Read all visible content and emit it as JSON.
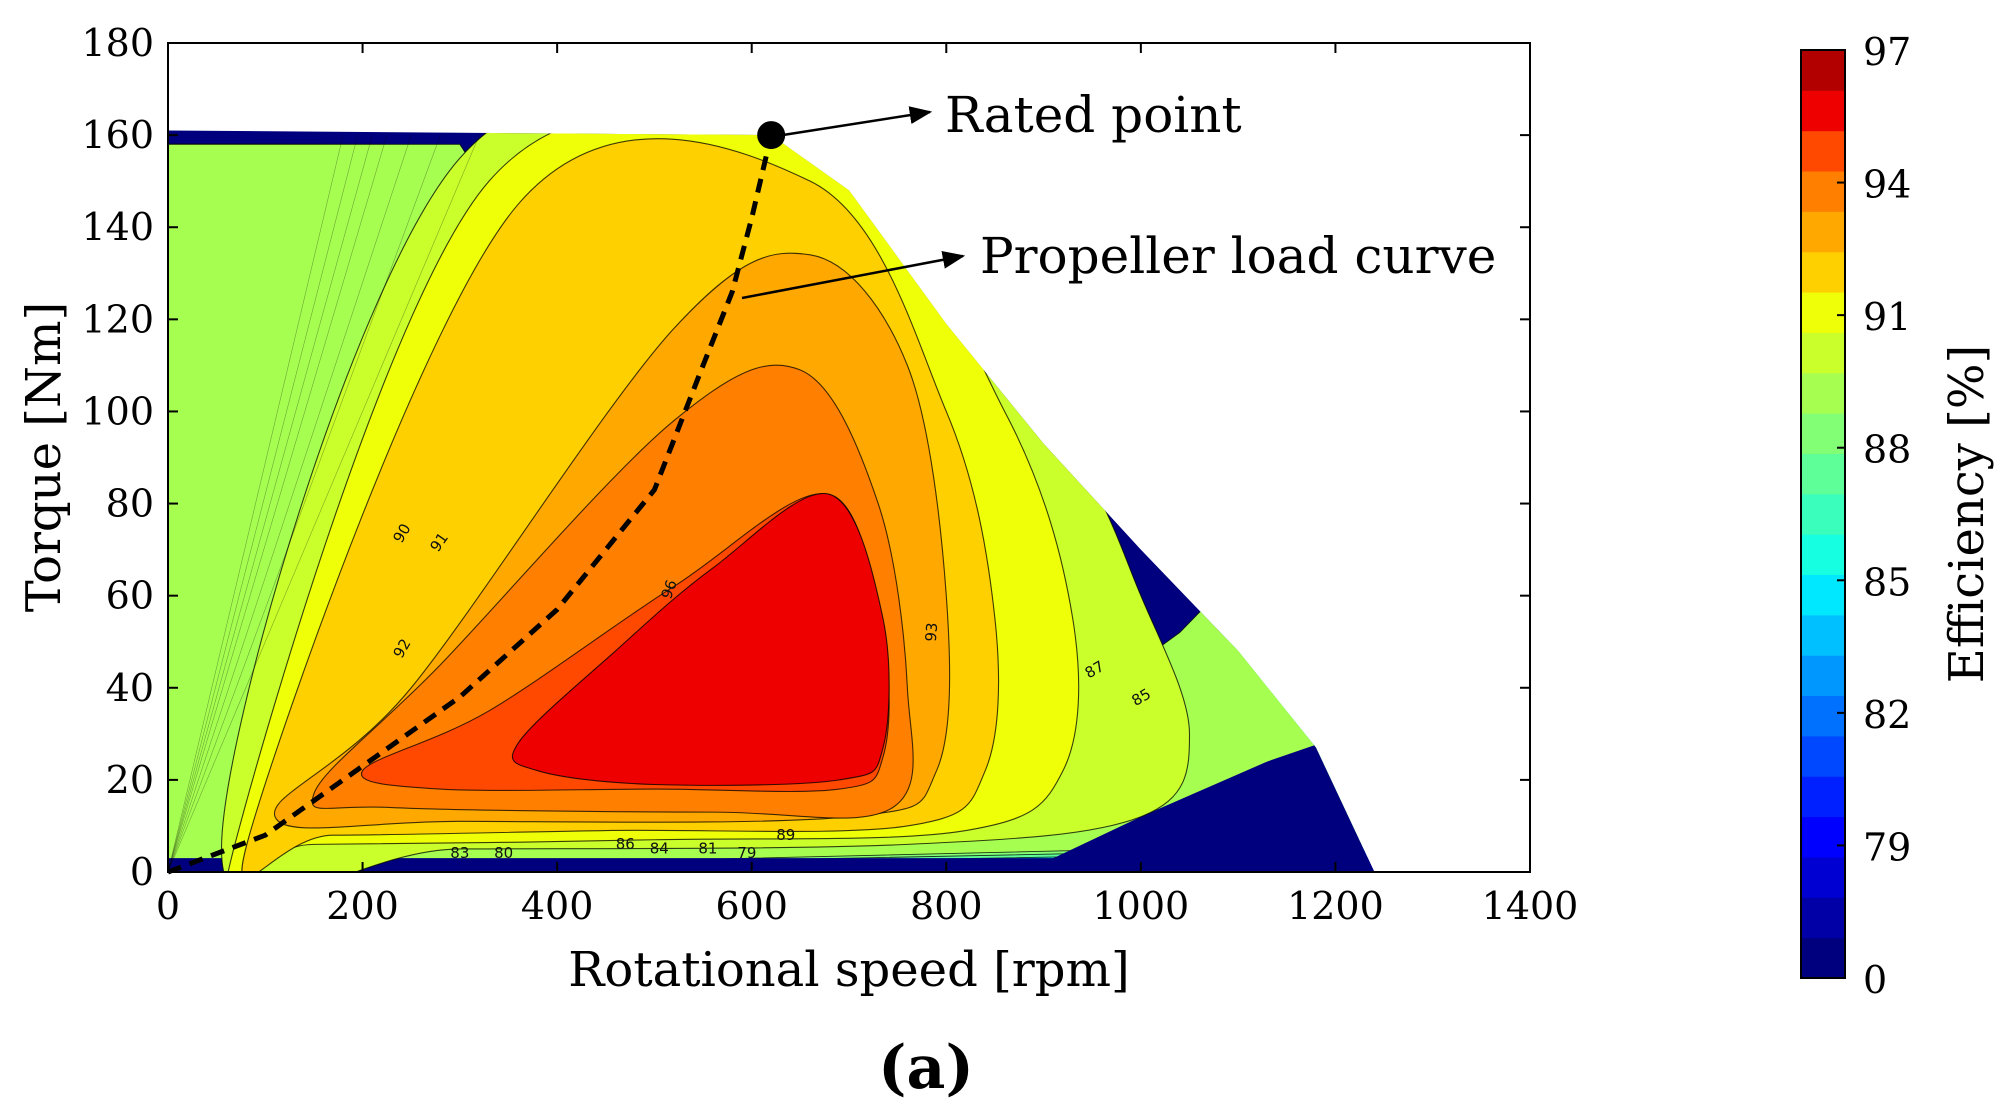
{
  "chart_data": {
    "type": "heatmap",
    "subtype": "filled-contour efficiency map",
    "panel_label": "(a)",
    "xlabel": "Rotational speed [rpm]",
    "ylabel": "Torque [Nm]",
    "xlim": [
      0,
      1400
    ],
    "ylim": [
      0,
      180
    ],
    "xticks": [
      0,
      200,
      400,
      600,
      800,
      1000,
      1200,
      1400
    ],
    "yticks": [
      0,
      20,
      40,
      60,
      80,
      100,
      120,
      140,
      160,
      180
    ],
    "colorbar": {
      "label": "Efficiency [%]",
      "tick_labels": [
        "0",
        "79",
        "82",
        "85",
        "88",
        "91",
        "94",
        "97"
      ],
      "levels": [
        0,
        75,
        77,
        78,
        79,
        80,
        81,
        82,
        83,
        84,
        85,
        86,
        87,
        88,
        89,
        90,
        91,
        92,
        93,
        94,
        95,
        96,
        97
      ],
      "colors": [
        "#00007f",
        "#0000a6",
        "#0000d2",
        "#0000ff",
        "#0020ff",
        "#0048ff",
        "#0070ff",
        "#0098ff",
        "#00c0ff",
        "#00e8ff",
        "#16ffe1",
        "#3affbc",
        "#5eff98",
        "#82ff74",
        "#a6ff50",
        "#caff2c",
        "#eeff08",
        "#ffd000",
        "#ffa800",
        "#ff8000",
        "#ff4800",
        "#ee0000",
        "#b20000"
      ]
    },
    "operating_envelope": {
      "max_torque": 160,
      "max_speed": 1240,
      "boundary_points": [
        [
          0,
          161
        ],
        [
          620,
          160
        ],
        [
          700,
          148
        ],
        [
          800,
          119
        ],
        [
          900,
          93
        ],
        [
          1000,
          70
        ],
        [
          1100,
          48
        ],
        [
          1180,
          27
        ],
        [
          1240,
          0
        ]
      ]
    },
    "regions": [
      {
        "efficiency_level": 95,
        "description": "peak region",
        "speed_range": [
          360,
          760
        ],
        "torque_range": [
          19,
          82
        ]
      },
      {
        "efficiency_level": 94,
        "speed_range": [
          200,
          790
        ],
        "torque_range": [
          13,
          109
        ]
      },
      {
        "efficiency_level": 93,
        "speed_range": [
          130,
          800
        ],
        "torque_range": [
          9,
          135
        ]
      }
    ],
    "contour_labels": [
      "90",
      "91",
      "92",
      "96",
      "93",
      "87",
      "85",
      "83",
      "80",
      "86",
      "84",
      "81",
      "79",
      "89"
    ],
    "series": [
      {
        "name": "Propeller load curve",
        "style": "dashed",
        "x": [
          0,
          100,
          200,
          300,
          400,
          500,
          550,
          580,
          600,
          620
        ],
        "y": [
          0,
          8,
          23,
          38,
          57,
          83,
          110,
          126,
          142,
          160
        ]
      }
    ],
    "annotations": [
      {
        "text": "Rated point",
        "target": {
          "x": 620,
          "y": 160
        }
      },
      {
        "text": "Propeller load curve",
        "target": {
          "x": 580,
          "y": 124
        }
      }
    ]
  }
}
